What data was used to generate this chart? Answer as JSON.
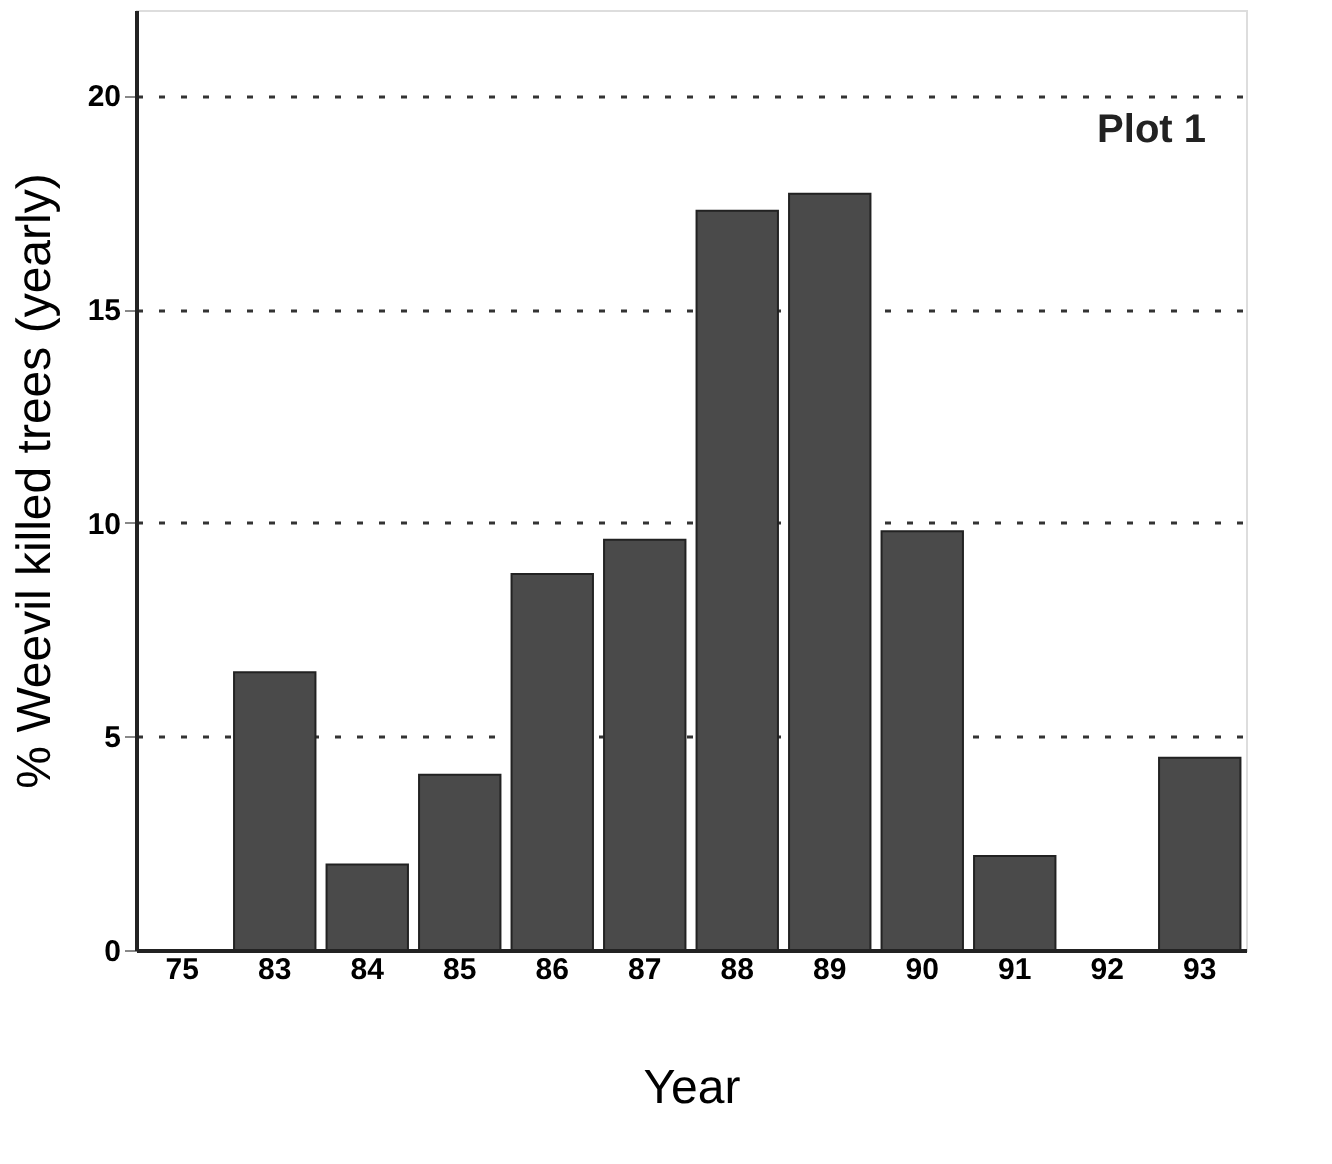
{
  "chart_data": {
    "type": "bar",
    "xlabel": "Year",
    "ylabel": "% Weevil killed trees (yearly)",
    "categories": [
      "75",
      "83",
      "84",
      "85",
      "86",
      "87",
      "88",
      "89",
      "90",
      "91",
      "92",
      "93"
    ],
    "values": [
      null,
      6.5,
      2.0,
      4.1,
      8.8,
      9.6,
      17.3,
      17.7,
      9.8,
      2.2,
      null,
      4.5
    ],
    "color": "#4a4a4a",
    "ylim": [
      0,
      22
    ],
    "yticks": [
      0,
      5,
      10,
      15,
      20
    ],
    "grid": "y",
    "line_style": "dotted",
    "annotations": [
      "Plot 1"
    ]
  }
}
